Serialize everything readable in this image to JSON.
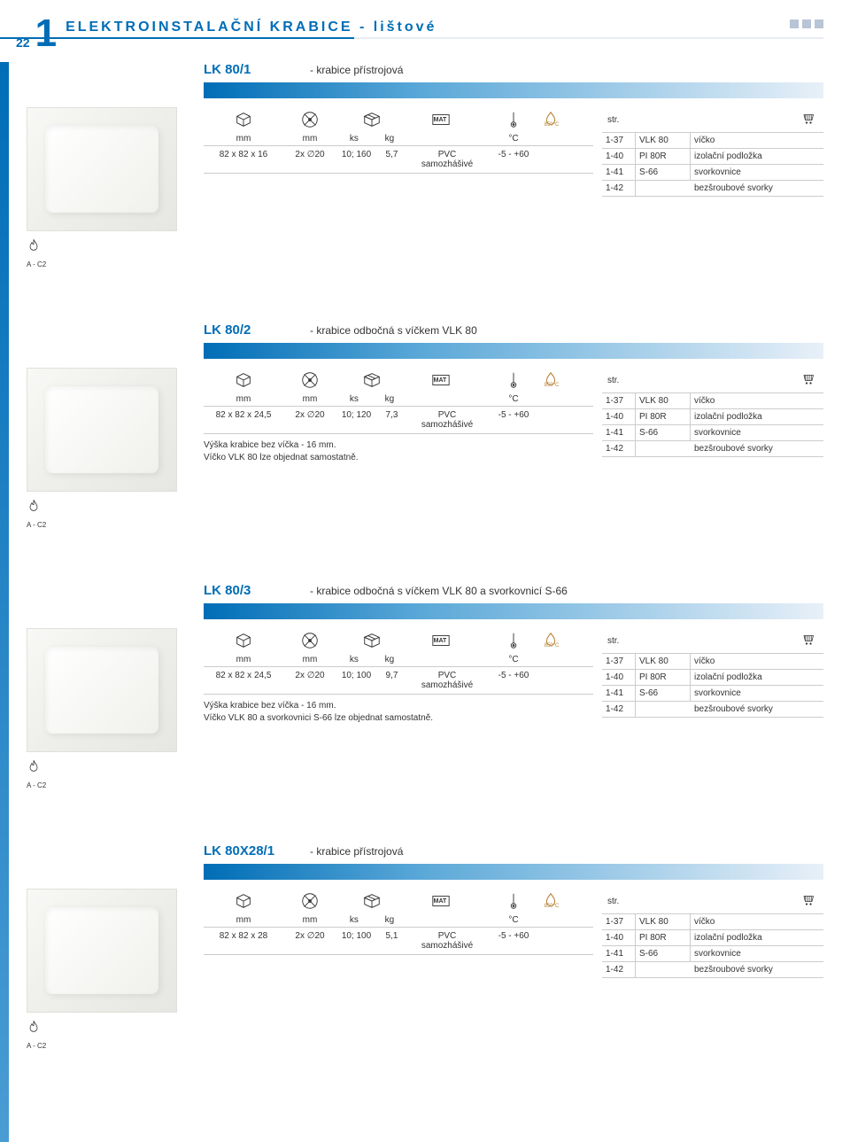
{
  "page": {
    "number": "22",
    "section_num": "1",
    "title": "ELEKTROINSTALAČNÍ KRABICE - lištové"
  },
  "icons": {
    "dim_unit": "mm",
    "knockout_unit": "mm",
    "pack_units": "ks   kg",
    "mat_label": "MAT",
    "temp_unit": "°C",
    "glow_label": "850°C",
    "str_label": "str.",
    "fire_code": "A - C2"
  },
  "accessories_common": [
    {
      "page": "1-37",
      "code": "VLK 80",
      "desc": "víčko"
    },
    {
      "page": "1-40",
      "code": "PI 80R",
      "desc": "izolační podložka"
    },
    {
      "page": "1-41",
      "code": "S-66",
      "desc": "svorkovnice"
    },
    {
      "page": "1-42",
      "code": "",
      "desc": "bezšroubové svorky"
    }
  ],
  "products": [
    {
      "code": "LK 80/1",
      "desc": "- krabice přístrojová",
      "dim": "82 x 82 x 16",
      "knockout": "2x ∅20",
      "pack_qty": "10; 160",
      "pack_wt": "5,7",
      "material": "PVC",
      "material2": "samozhášivé",
      "temp": "-5 - +60",
      "notes": []
    },
    {
      "code": "LK 80/2",
      "desc": "- krabice odbočná s víčkem VLK 80",
      "dim": "82 x 82 x 24,5",
      "knockout": "2x ∅20",
      "pack_qty": "10; 120",
      "pack_wt": "7,3",
      "material": "PVC",
      "material2": "samozhášivé",
      "temp": "-5 - +60",
      "notes": [
        "Výška krabice bez víčka - 16 mm.",
        "Víčko VLK 80 lze objednat samostatně."
      ]
    },
    {
      "code": "LK 80/3",
      "desc": "- krabice odbočná s víčkem VLK 80 a svorkovnicí S-66",
      "dim": "82 x 82 x 24,5",
      "knockout": "2x ∅20",
      "pack_qty": "10; 100",
      "pack_wt": "9,7",
      "material": "PVC",
      "material2": "samozhášivé",
      "temp": "-5 - +60",
      "notes": [
        "Výška krabice bez víčka - 16 mm.",
        "Víčko VLK 80 a svorkovnici S-66 lze objednat samostatně."
      ]
    },
    {
      "code": "LK 80X28/1",
      "desc": "- krabice přístrojová",
      "dim": "82 x 82 x 28",
      "knockout": "2x ∅20",
      "pack_qty": "10; 100",
      "pack_wt": "5,1",
      "material": "PVC",
      "material2": "samozhášivé",
      "temp": "-5 - +60",
      "notes": []
    }
  ],
  "colors": {
    "primary": "#006db6",
    "grad_mid": "#5aa8d8",
    "grad_end": "#e8f0f8",
    "border": "#cccccc"
  }
}
